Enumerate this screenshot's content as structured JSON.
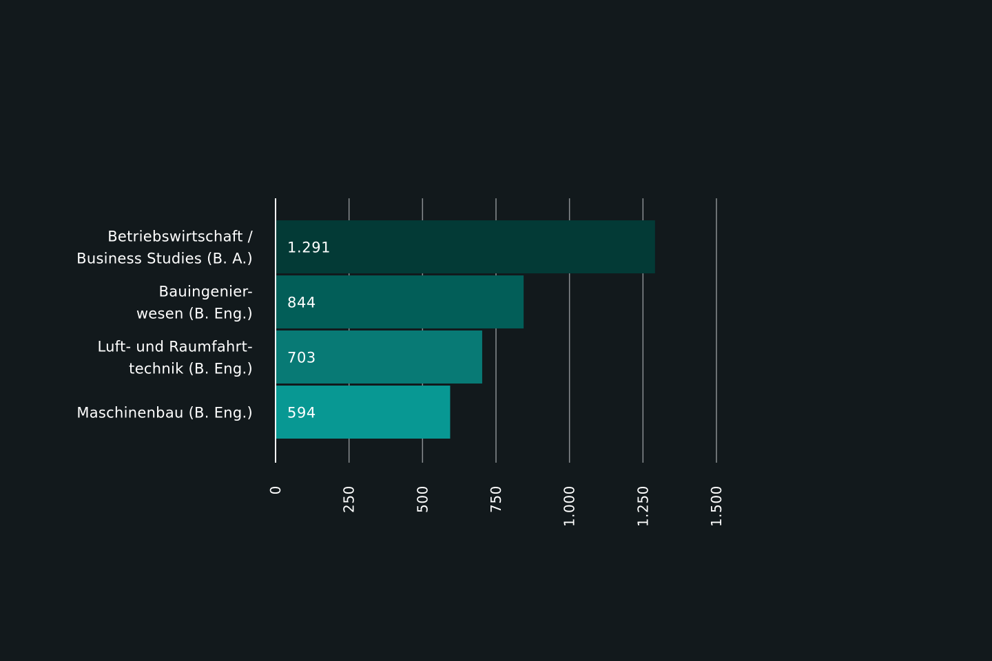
{
  "chart_data": {
    "type": "bar",
    "orientation": "horizontal",
    "categories": [
      [
        "Betriebswirtschaft /",
        "Business Studies (B. A.)"
      ],
      [
        "Bauingenier-",
        "wesen (B. Eng.)"
      ],
      [
        "Luft- und Raumfahrt-",
        "technik (B. Eng.)"
      ],
      [
        "Maschinenbau (B. Eng.)"
      ]
    ],
    "values": [
      1291,
      844,
      703,
      594
    ],
    "value_labels": [
      "1.291",
      "844",
      "703",
      "594"
    ],
    "xlim": [
      0,
      1500
    ],
    "ticks": [
      0,
      250,
      500,
      750,
      1000,
      1250,
      1500
    ],
    "tick_labels": [
      "0",
      "250",
      "500",
      "750",
      "1.000",
      "1.250",
      "1.500"
    ],
    "grid": true,
    "colors": {
      "background": "#12191c",
      "bars": [
        "#033a36",
        "#025e58",
        "#087a75",
        "#089893"
      ],
      "gridline": "#8a8f92",
      "axis": "#ffffff",
      "text": "#ffffff"
    }
  }
}
